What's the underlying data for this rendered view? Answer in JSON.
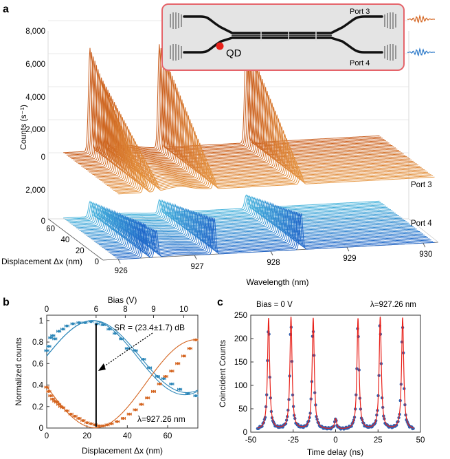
{
  "figure": {
    "panel_a": "a",
    "panel_b": "b",
    "panel_c": "c"
  },
  "chart_data": [
    {
      "id": "a",
      "type": "line",
      "title": "",
      "ylabel": "Counts (s⁻¹)",
      "xlabel": "Wavelength (nm)",
      "depth_label": "Displacement Δx (nm)",
      "x_ticks": [
        "926",
        "927",
        "928",
        "929",
        "930"
      ],
      "depth_ticks": [
        "0",
        "20",
        "40",
        "60"
      ],
      "port3_ticks": [
        "0",
        "2,000",
        "4,000",
        "6,000",
        "8,000"
      ],
      "port4_ticks": [
        "0",
        "2,000"
      ],
      "port3_label": "Port 3",
      "port4_label": "Port 4",
      "xlim": [
        925.8,
        930.2
      ],
      "depth_lim": [
        0,
        75
      ],
      "peaks_nm": [
        926.35,
        926.5,
        927.26,
        928.4
      ],
      "colors": {
        "port3": "#d4641f",
        "port4": "#2a78c8"
      },
      "inset": {
        "qd_label": "QD",
        "port3": "Port 3",
        "port4": "Port 4"
      }
    },
    {
      "id": "b",
      "type": "scatter",
      "xlabel": "Displacement  Δx (nm)",
      "ylabel": "Normalized counts",
      "top_xlabel": "Bias (V)",
      "x_ticks": [
        "0",
        "20",
        "40",
        "60"
      ],
      "y_ticks": [
        "0",
        "0.2",
        "0.4",
        "0.6",
        "0.8",
        "1"
      ],
      "top_ticks": [
        "0",
        "6",
        "8",
        "9",
        "10"
      ],
      "xlim": [
        0,
        75
      ],
      "ylim": [
        0,
        1.05
      ],
      "annotation": "SR = (23.4±1.7) dB",
      "wavelength_note": "λ=927.26 nm",
      "vertical_line_x": 24.5,
      "series": [
        {
          "name": "Port 3",
          "color": "#2c86b8",
          "x": [
            0,
            1,
            2,
            3,
            4,
            6,
            8,
            10,
            13,
            16,
            19,
            22,
            25,
            28,
            31,
            34,
            37,
            40,
            44,
            48,
            51,
            55,
            58,
            62,
            66,
            70,
            74
          ],
          "y": [
            0.72,
            0.76,
            0.84,
            0.86,
            0.83,
            0.9,
            0.92,
            0.95,
            0.97,
            0.98,
            0.98,
            0.99,
            0.97,
            0.96,
            0.92,
            0.88,
            0.83,
            0.74,
            0.72,
            0.64,
            0.56,
            0.48,
            0.46,
            0.41,
            0.36,
            0.32,
            0.3
          ]
        },
        {
          "name": "Port 4",
          "color": "#d4641f",
          "x": [
            0,
            1,
            2,
            3,
            4,
            5,
            6,
            7,
            8,
            10,
            12,
            14,
            16,
            18,
            20,
            22,
            24,
            26,
            28,
            30,
            32,
            35,
            38,
            41,
            44,
            47,
            50,
            53,
            56,
            59,
            62,
            65,
            68,
            71,
            74
          ],
          "y": [
            0.38,
            0.34,
            0.3,
            0.27,
            0.25,
            0.24,
            0.22,
            0.2,
            0.19,
            0.16,
            0.13,
            0.11,
            0.09,
            0.07,
            0.05,
            0.04,
            0.03,
            0.02,
            0.02,
            0.03,
            0.04,
            0.06,
            0.09,
            0.13,
            0.17,
            0.22,
            0.28,
            0.34,
            0.41,
            0.48,
            0.53,
            0.6,
            0.67,
            0.74,
            0.82
          ]
        }
      ]
    },
    {
      "id": "c",
      "type": "line",
      "xlabel": "Time delay (ns)",
      "ylabel": "Coincident Counts",
      "x_ticks": [
        "-50",
        "-25",
        "0",
        "25",
        "50"
      ],
      "y_ticks": [
        "0",
        "50",
        "100",
        "150",
        "200",
        "250"
      ],
      "xlim": [
        -50,
        50
      ],
      "ylim": [
        0,
        250
      ],
      "bias_note": "Bias = 0 V",
      "wavelength_note": "λ=927.26 nm",
      "peaks": [
        {
          "center": -39.5,
          "height": 243
        },
        {
          "center": -26.3,
          "height": 245
        },
        {
          "center": -13.2,
          "height": 243
        },
        {
          "center": 0,
          "height": 27
        },
        {
          "center": 13.2,
          "height": 242
        },
        {
          "center": 26.3,
          "height": 245
        },
        {
          "center": 39.5,
          "height": 244
        }
      ],
      "background": 5,
      "fit_color": "#e8211a",
      "point_color": "#2f5fb0"
    }
  ]
}
